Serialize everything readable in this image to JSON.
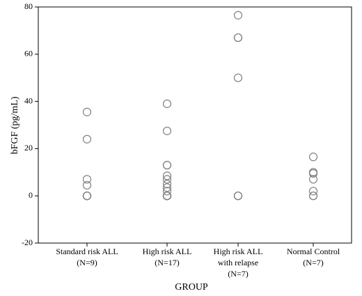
{
  "chart_data": {
    "type": "strip",
    "x_label": "GROUP",
    "y_label": "bFGF (pg/mL)",
    "categories": [
      [
        "Standard risk ALL",
        "(N=9)"
      ],
      [
        "High risk ALL",
        "(N=17)"
      ],
      [
        "High risk ALL",
        "with relapse",
        "(N=7)"
      ],
      [
        "Normal Control",
        "(N=7)"
      ]
    ],
    "values": [
      [
        35.5,
        24,
        7,
        4.5,
        0,
        0,
        0,
        0,
        0
      ],
      [
        39,
        27.5,
        13,
        13,
        8.5,
        7,
        5,
        3.5,
        2,
        0,
        0,
        0,
        0,
        0,
        0,
        0,
        0
      ],
      [
        76.5,
        67,
        67,
        50,
        0,
        0,
        0
      ],
      [
        16.5,
        10,
        9.5,
        7,
        2,
        0,
        0
      ]
    ],
    "color": "#808080",
    "ylim": [
      -20,
      80
    ],
    "yticks": [
      -20,
      0,
      20,
      40,
      60,
      80
    ]
  }
}
